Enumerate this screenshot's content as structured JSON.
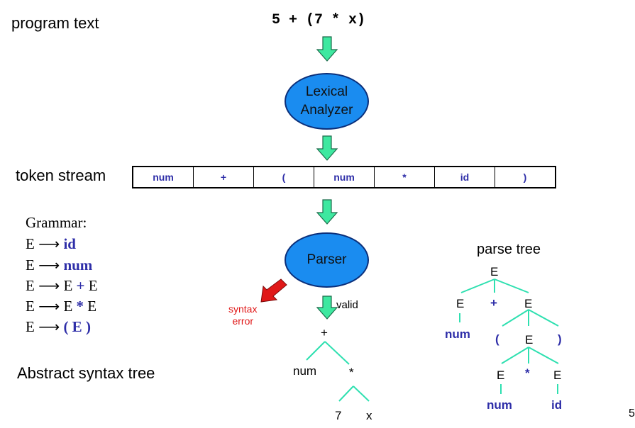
{
  "program_text_label": "program text",
  "program_code": "5 + (7 * x)",
  "lexer_line1": "Lexical",
  "lexer_line2": "Analyzer",
  "token_stream_label": "token stream",
  "tokens": [
    "num",
    "+",
    "(",
    "num",
    "*",
    "id",
    ")"
  ],
  "grammar_title": "Grammar:",
  "grammar_lhs": "E",
  "grammar_rules": [
    {
      "pre": "",
      "term": "id",
      "post": ""
    },
    {
      "pre": "",
      "term": "num",
      "post": ""
    },
    {
      "pre": "E ",
      "term": "+",
      "post": " E"
    },
    {
      "pre": "E ",
      "term": "*",
      "post": " E"
    },
    {
      "pre": "",
      "term": "( E )",
      "post": ""
    }
  ],
  "parser_label": "Parser",
  "syntax_error_line1": "syntax",
  "syntax_error_line2": "error",
  "valid_label": "valid",
  "ast_label": "Abstract syntax tree",
  "ast": {
    "root": "+",
    "left": "num",
    "right": "*",
    "rl": "7",
    "rr": "x"
  },
  "parse_tree_label": "parse tree",
  "parse_tree": {
    "E": "E",
    "plus": "+",
    "num": "num",
    "lparen": "(",
    "rparen": ")",
    "star": "*",
    "id": "id"
  },
  "page_number": "5",
  "colors": {
    "arrow": "#3ee8a0",
    "tree_line": "#2ee0b0",
    "ellipse": "#1a8cf0",
    "error_arrow": "#e01818",
    "token_text": "#2e2ea8"
  }
}
